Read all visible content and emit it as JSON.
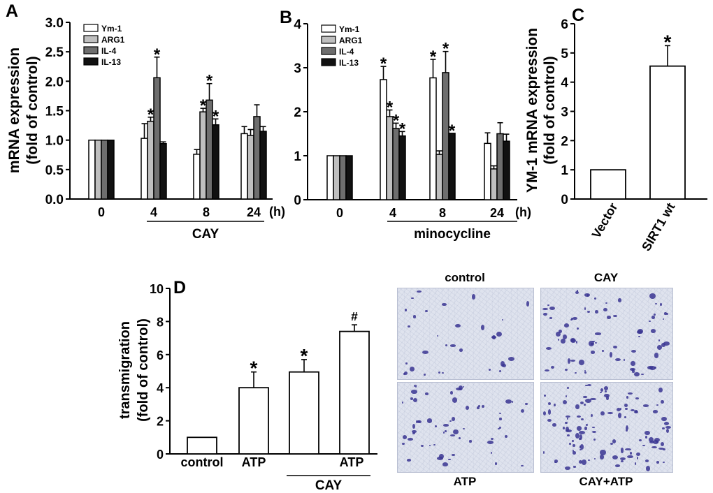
{
  "colors": {
    "ym1": "#ffffff",
    "arg1": "#bfbfbf",
    "il4": "#6e6e6e",
    "il13": "#111111",
    "stain": "#3a3592",
    "field_bg": "#dfe3ee"
  },
  "chart_data": [
    {
      "id": "A",
      "panel_label": "A",
      "type": "bar",
      "ylabel": [
        "mRNA expression",
        "(fold of control)"
      ],
      "ylim": [
        0,
        3.0
      ],
      "yticks": [
        "0.0",
        "0.5",
        "1.0",
        "1.5",
        "2.0",
        "2.5",
        "3.0"
      ],
      "tickvals": [
        0,
        0.5,
        1.0,
        1.5,
        2.0,
        2.5,
        3.0
      ],
      "categories": [
        "0",
        "4",
        "8",
        "24"
      ],
      "x_unit": "(h)",
      "treatment_label": "CAY",
      "legend": [
        "Ym-1",
        "ARG1",
        "IL-4",
        "IL-13"
      ],
      "series": [
        {
          "name": "Ym-1",
          "color": "#ffffff",
          "values": [
            1.0,
            1.03,
            0.76,
            1.11
          ],
          "errors": [
            0,
            0.25,
            0.08,
            0.12
          ],
          "sig": [
            "",
            "",
            "",
            ""
          ]
        },
        {
          "name": "ARG1",
          "color": "#bfbfbf",
          "values": [
            1.0,
            1.32,
            1.48,
            1.08
          ],
          "errors": [
            0,
            0.07,
            0.06,
            0.1
          ],
          "sig": [
            "",
            "*",
            "*",
            ""
          ]
        },
        {
          "name": "IL-4",
          "color": "#6e6e6e",
          "values": [
            1.0,
            2.06,
            1.68,
            1.4
          ],
          "errors": [
            0,
            0.35,
            0.28,
            0.2
          ],
          "sig": [
            "",
            "*",
            "*",
            ""
          ]
        },
        {
          "name": "IL-13",
          "color": "#111111",
          "values": [
            1.0,
            0.94,
            1.26,
            1.15
          ],
          "errors": [
            0,
            0.03,
            0.1,
            0.08
          ],
          "sig": [
            "",
            "",
            "*",
            ""
          ]
        }
      ]
    },
    {
      "id": "B",
      "panel_label": "B",
      "type": "bar",
      "ylabel": [],
      "ylim": [
        0,
        4
      ],
      "yticks": [
        "0",
        "1",
        "2",
        "3",
        "4"
      ],
      "tickvals": [
        0,
        1,
        2,
        3,
        4
      ],
      "categories": [
        "0",
        "4",
        "8",
        "24"
      ],
      "x_unit": "(h)",
      "treatment_label": "minocycline",
      "legend": [
        "Ym-1",
        "ARG1",
        "IL-4",
        "IL-13"
      ],
      "series": [
        {
          "name": "Ym-1",
          "color": "#ffffff",
          "values": [
            1.0,
            2.73,
            2.77,
            1.28
          ],
          "errors": [
            0,
            0.3,
            0.42,
            0.24
          ],
          "sig": [
            "",
            "*",
            "*",
            ""
          ]
        },
        {
          "name": "ARG1",
          "color": "#bfbfbf",
          "values": [
            1.0,
            1.89,
            1.03,
            0.7
          ],
          "errors": [
            0,
            0.15,
            0.08,
            0.07
          ],
          "sig": [
            "",
            "*",
            "",
            ""
          ]
        },
        {
          "name": "IL-4",
          "color": "#6e6e6e",
          "values": [
            1.0,
            1.62,
            2.89,
            1.5
          ],
          "errors": [
            0,
            0.12,
            0.48,
            0.25
          ],
          "sig": [
            "",
            "*",
            "*",
            ""
          ]
        },
        {
          "name": "IL-13",
          "color": "#111111",
          "values": [
            1.0,
            1.45,
            1.51,
            1.33
          ],
          "errors": [
            0,
            0.1,
            0.0,
            0.16
          ],
          "sig": [
            "",
            "*",
            "*",
            ""
          ]
        }
      ]
    },
    {
      "id": "C",
      "panel_label": "C",
      "type": "bar",
      "ylabel": [
        "YM-1 mRNA expression",
        "(fold of control)"
      ],
      "ylim": [
        0,
        6
      ],
      "yticks": [
        "0",
        "1",
        "2",
        "3",
        "4",
        "5",
        "6"
      ],
      "tickvals": [
        0,
        1,
        2,
        3,
        4,
        5,
        6
      ],
      "categories": [
        "Vector",
        "SIRT1 wt"
      ],
      "values": [
        1.0,
        4.55
      ],
      "errors": [
        0,
        0.7
      ],
      "sig": [
        "",
        "*"
      ]
    },
    {
      "id": "D",
      "panel_label": "D",
      "type": "bar",
      "ylabel": [
        "transmigration",
        "(fold of control)"
      ],
      "ylim": [
        0,
        10
      ],
      "yticks": [
        "0",
        "2",
        "4",
        "6",
        "8",
        "10"
      ],
      "tickvals": [
        0,
        2,
        4,
        6,
        8,
        10
      ],
      "categories": [
        "control",
        "ATP",
        "",
        "ATP"
      ],
      "values": [
        1.0,
        4.0,
        4.95,
        7.4
      ],
      "errors": [
        0,
        0.95,
        0.75,
        0.4
      ],
      "sig": [
        "",
        "*",
        "*",
        "#"
      ],
      "treatment_label": "CAY"
    }
  ],
  "micrographs": [
    {
      "label": "control",
      "cells": 32
    },
    {
      "label": "CAY",
      "cells": 80
    },
    {
      "label": "ATP",
      "cells": 60
    },
    {
      "label": "CAY+ATP",
      "cells": 120
    }
  ]
}
